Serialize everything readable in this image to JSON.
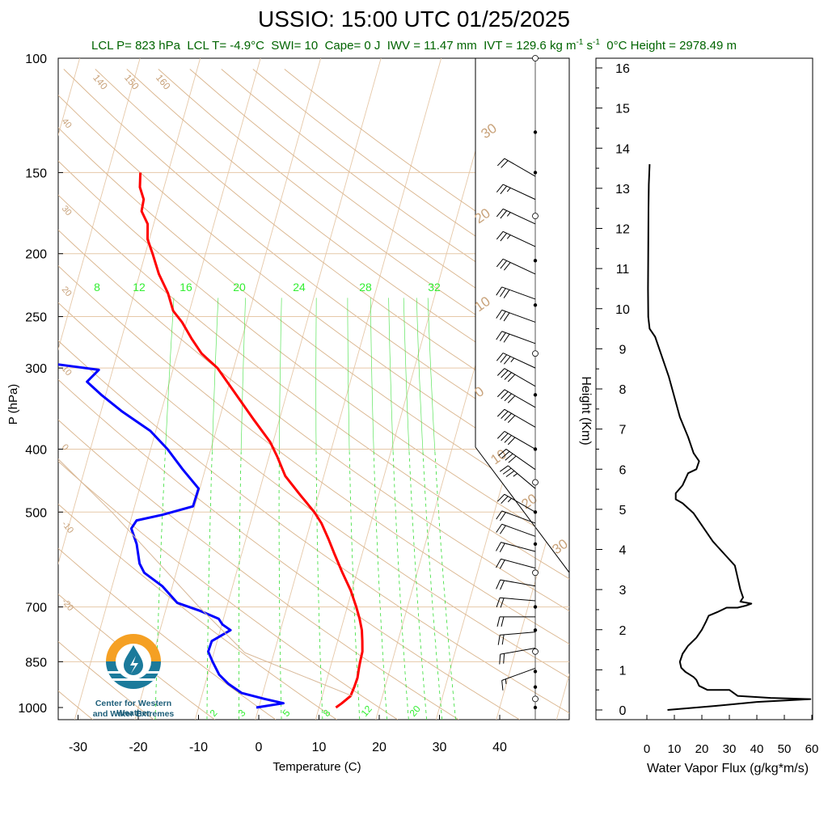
{
  "header": {
    "title": "USSIO: 15:00 UTC 01/25/2025",
    "lcl_p": "LCL P= 823 hPa",
    "lcl_t": "LCL T= -4.9°C",
    "swi": "SWI= 10",
    "cape": "Cape= 0 J",
    "iwv": "IWV = 11.47 mm",
    "ivt_prefix": "IVT = 129.6 kg m",
    "ivt_mid": " s",
    "ivt_exp": "-1",
    "zero_c_height": "0°C Height = 2978.49 m"
  },
  "logo": {
    "line1": "Center for Western Weather",
    "line2": "and Water Extremes",
    "colors": {
      "sun": "#f5a023",
      "water": "#1b7a9b",
      "drop": "#ffffff"
    }
  },
  "chart_data": [
    {
      "type": "line",
      "subtype": "skew-T log-P sounding",
      "xlabel": "Temperature (C)",
      "ylabel": "P (hPa)",
      "xlim": [
        -34,
        52
      ],
      "ylim": [
        1000,
        100
      ],
      "y_scale": "log",
      "skew": "isotherms lean right with height",
      "x_ticks": [
        -30,
        -20,
        -10,
        0,
        10,
        20,
        30,
        40
      ],
      "y_ticks": [
        100,
        150,
        200,
        250,
        300,
        400,
        500,
        700,
        850,
        1000
      ],
      "isobars": [
        150,
        200,
        250,
        300,
        400,
        500,
        700,
        850
      ],
      "isotherm_labels": [
        -50,
        -40,
        -30,
        -20,
        -10,
        0,
        10,
        20,
        30,
        40,
        50
      ],
      "adiabat_labels": [
        50,
        60,
        70,
        80,
        90,
        100,
        110,
        120,
        130,
        140,
        150,
        160
      ],
      "mixing_ratio_upper_labels": [
        8,
        12,
        16,
        20,
        24,
        28,
        32
      ],
      "mixing_ratio_lower_labels": [
        2,
        3,
        5,
        8,
        12,
        20
      ],
      "colors": {
        "temperature": "#ff0000",
        "dewpoint": "#0000ff",
        "isotherm": "#e6c8a8",
        "adiabat": "#d9b48c",
        "mixing_ratio": "#33dd33",
        "label_brown": "#c8a27a",
        "label_green": "#33ee33",
        "parcel": "#d8b898"
      },
      "series": [
        {
          "name": "Temperature",
          "points": [
            [
              1000,
              12.8
            ],
            [
              985,
              13.6
            ],
            [
              960,
              14.7
            ],
            [
              930,
              14.9
            ],
            [
              900,
              15.0
            ],
            [
              870,
              14.8
            ],
            [
              850,
              14.7
            ],
            [
              820,
              14.6
            ],
            [
              790,
              14.1
            ],
            [
              760,
              13.5
            ],
            [
              730,
              12.6
            ],
            [
              700,
              11.5
            ],
            [
              660,
              9.8
            ],
            [
              620,
              7.6
            ],
            [
              580,
              5.4
            ],
            [
              550,
              3.7
            ],
            [
              520,
              1.8
            ],
            [
              500,
              0.1
            ],
            [
              470,
              -3.1
            ],
            [
              440,
              -6.4
            ],
            [
              410,
              -8.7
            ],
            [
              390,
              -10.5
            ],
            [
              360,
              -14.3
            ],
            [
              330,
              -18.3
            ],
            [
              300,
              -22.7
            ],
            [
              285,
              -26.0
            ],
            [
              270,
              -28.4
            ],
            [
              255,
              -30.7
            ],
            [
              245,
              -32.7
            ],
            [
              230,
              -34.4
            ],
            [
              215,
              -36.8
            ],
            [
              200,
              -38.8
            ],
            [
              190,
              -40.3
            ],
            [
              180,
              -41.0
            ],
            [
              172,
              -42.6
            ],
            [
              165,
              -42.8
            ],
            [
              158,
              -44.0
            ],
            [
              150,
              -44.6
            ]
          ]
        },
        {
          "name": "Dewpoint",
          "points": [
            [
              1000,
              -0.4
            ],
            [
              985,
              3.9
            ],
            [
              970,
              0.6
            ],
            [
              950,
              -3.5
            ],
            [
              920,
              -6.1
            ],
            [
              890,
              -8.1
            ],
            [
              850,
              -9.8
            ],
            [
              820,
              -11.0
            ],
            [
              790,
              -10.9
            ],
            [
              760,
              -8.3
            ],
            [
              745,
              -9.9
            ],
            [
              730,
              -10.8
            ],
            [
              710,
              -14.2
            ],
            [
              690,
              -18.4
            ],
            [
              650,
              -21.7
            ],
            [
              620,
              -25.3
            ],
            [
              600,
              -26.5
            ],
            [
              560,
              -27.9
            ],
            [
              530,
              -29.5
            ],
            [
              515,
              -29.0
            ],
            [
              505,
              -25.0
            ],
            [
              490,
              -20.3
            ],
            [
              460,
              -20.2
            ],
            [
              430,
              -23.7
            ],
            [
              400,
              -27.2
            ],
            [
              375,
              -30.9
            ],
            [
              350,
              -36.5
            ],
            [
              330,
              -40.7
            ],
            [
              315,
              -43.7
            ],
            [
              302,
              -42.3
            ],
            [
              298,
              -47.1
            ],
            [
              290,
              -57.3
            ],
            [
              280,
              -62.0
            ],
            [
              262,
              -63.3
            ],
            [
              240,
              -64.5
            ],
            [
              220,
              -65.0
            ],
            [
              200,
              -64.3
            ],
            [
              185,
              -64.6
            ],
            [
              170,
              -66.0
            ],
            [
              160,
              -67.8
            ],
            [
              155,
              -68.8
            ],
            [
              150,
              -70.7
            ]
          ]
        },
        {
          "name": "Parcel",
          "points": [
            [
              960,
              15.0
            ],
            [
              823,
              -4.9
            ],
            [
              700,
              -14.6
            ],
            [
              500,
              -33.5
            ],
            [
              400,
              -47.0
            ],
            [
              300,
              -63.7
            ],
            [
              230,
              -79.7
            ]
          ]
        }
      ],
      "wind_barbs": [
        [
          152,
          300,
          20
        ],
        [
          165,
          295,
          25
        ],
        [
          180,
          295,
          25
        ],
        [
          195,
          295,
          25
        ],
        [
          215,
          295,
          30
        ],
        [
          235,
          290,
          30
        ],
        [
          255,
          290,
          30
        ],
        [
          275,
          290,
          30
        ],
        [
          300,
          295,
          35
        ],
        [
          320,
          300,
          40
        ],
        [
          345,
          300,
          40
        ],
        [
          370,
          300,
          40
        ],
        [
          400,
          300,
          40
        ],
        [
          430,
          305,
          40
        ],
        [
          460,
          310,
          35
        ],
        [
          500,
          300,
          25
        ],
        [
          520,
          290,
          20
        ],
        [
          545,
          290,
          20
        ],
        [
          575,
          285,
          20
        ],
        [
          610,
          285,
          20
        ],
        [
          650,
          280,
          20
        ],
        [
          685,
          275,
          20
        ],
        [
          725,
          270,
          20
        ],
        [
          765,
          265,
          20
        ],
        [
          810,
          260,
          20
        ],
        [
          870,
          250,
          15
        ]
      ]
    },
    {
      "type": "line",
      "subtype": "vertical profile",
      "xlabel": "Water Vapor Flux (g/kg*m/s)",
      "ylabel": "Height (Km)",
      "xlim": [
        0,
        60
      ],
      "ylim": [
        -0.3,
        16.4
      ],
      "x_ticks": [
        0,
        10,
        20,
        30,
        40,
        50,
        60
      ],
      "y_ticks": [
        0,
        1,
        2,
        3,
        4,
        5,
        6,
        7,
        8,
        9,
        10,
        11,
        12,
        13,
        14,
        15,
        16
      ],
      "series": [
        {
          "name": "Water Vapor Flux",
          "points": [
            [
              7.5,
              0.0
            ],
            [
              25,
              0.1
            ],
            [
              40,
              0.2
            ],
            [
              59.5,
              0.27
            ],
            [
              45,
              0.3
            ],
            [
              33,
              0.35
            ],
            [
              32,
              0.4
            ],
            [
              30,
              0.5
            ],
            [
              22,
              0.5
            ],
            [
              19,
              0.6
            ],
            [
              18,
              0.75
            ],
            [
              17,
              0.82
            ],
            [
              14,
              0.95
            ],
            [
              12.5,
              1.05
            ],
            [
              12,
              1.2
            ],
            [
              13,
              1.4
            ],
            [
              15,
              1.6
            ],
            [
              18,
              1.8
            ],
            [
              20,
              2.0
            ],
            [
              21.5,
              2.2
            ],
            [
              22.5,
              2.35
            ],
            [
              26,
              2.45
            ],
            [
              29,
              2.55
            ],
            [
              33,
              2.55
            ],
            [
              36,
              2.6
            ],
            [
              38,
              2.65
            ],
            [
              34,
              2.7
            ],
            [
              35,
              2.8
            ],
            [
              34,
              3.0
            ],
            [
              33,
              3.3
            ],
            [
              32,
              3.6
            ],
            [
              28,
              3.9
            ],
            [
              24,
              4.2
            ],
            [
              21,
              4.5
            ],
            [
              17,
              4.9
            ],
            [
              13,
              5.15
            ],
            [
              10.5,
              5.25
            ],
            [
              10.5,
              5.4
            ],
            [
              13,
              5.6
            ],
            [
              15,
              5.9
            ],
            [
              18,
              6.0
            ],
            [
              19,
              6.2
            ],
            [
              17,
              6.4
            ],
            [
              15,
              6.8
            ],
            [
              12,
              7.3
            ],
            [
              10,
              7.8
            ],
            [
              8,
              8.3
            ],
            [
              5,
              8.9
            ],
            [
              3,
              9.3
            ],
            [
              1,
              9.5
            ],
            [
              0.5,
              9.8
            ],
            [
              0.4,
              10.5
            ],
            [
              0.5,
              11.5
            ],
            [
              0.6,
              12.5
            ],
            [
              0.7,
              13.1
            ],
            [
              1.0,
              13.6
            ]
          ]
        }
      ]
    }
  ]
}
